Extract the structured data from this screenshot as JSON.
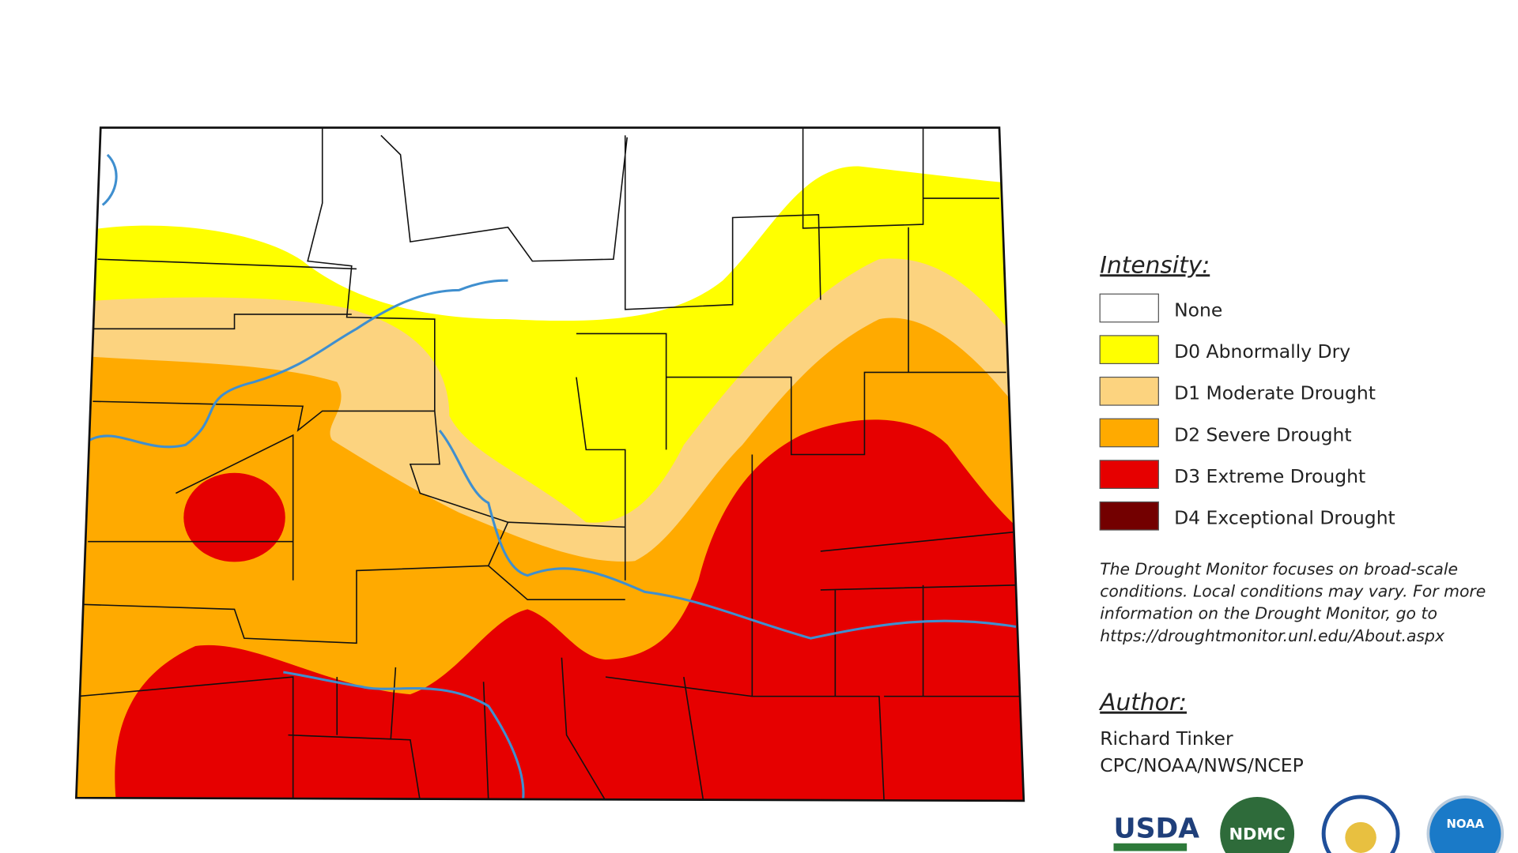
{
  "legend": {
    "title": "Intensity:",
    "items": [
      "None",
      "D0 Abnormally Dry",
      "D1 Moderate Drought",
      "D2 Severe Drought",
      "D3 Extreme Drought",
      "D4 Exceptional Drought"
    ]
  },
  "note": [
    "The Drought Monitor focuses on broad-scale",
    "conditions. Local conditions may vary. For more",
    "information on the Drought Monitor, go to",
    "https://droughtmonitor.unl.edu/About.aspx"
  ],
  "author": {
    "title": "Author:",
    "name": "Richard Tinker",
    "org": "CPC/NOAA/NWS/NCEP"
  },
  "logos": [
    "USDA",
    "NDMC",
    "NOAA"
  ]
}
